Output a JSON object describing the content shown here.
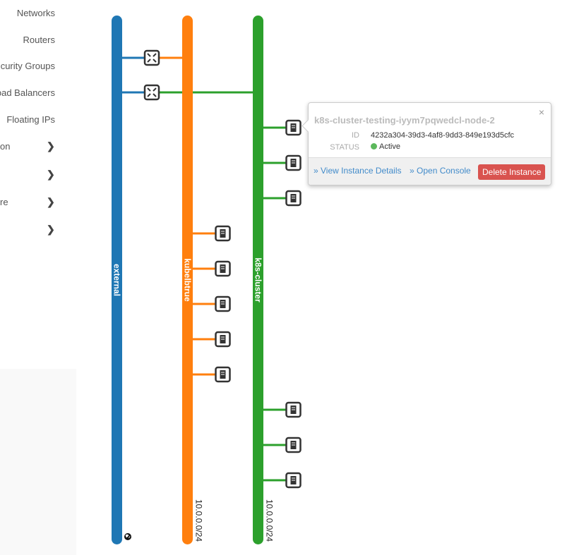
{
  "sidebar": {
    "items": [
      {
        "label": "Networks"
      },
      {
        "label": "Routers"
      },
      {
        "label": "curity Groups"
      },
      {
        "label": "oad Balancers"
      },
      {
        "label": "Floating IPs"
      },
      {
        "label": "on"
      },
      {
        "label": ""
      },
      {
        "label": "re"
      },
      {
        "label": ""
      }
    ]
  },
  "topology": {
    "networks": [
      {
        "name": "external",
        "color": "#1f77b4",
        "cidr": ""
      },
      {
        "name": "kubelbtrue",
        "color": "#ff7f0e",
        "cidr": "10.0.0.0/24"
      },
      {
        "name": "k8s-cluster",
        "color": "#2ca02c",
        "cidr": "10.0.0.0/24"
      }
    ],
    "routers": [
      {
        "connects": [
          "external",
          "kubelbtrue"
        ]
      },
      {
        "connects": [
          "external",
          "k8s-cluster"
        ]
      }
    ],
    "instances": {
      "kubelbtrue": 5,
      "k8s-cluster": 6
    }
  },
  "popup": {
    "title": "k8s-cluster-testing-iyym7pqwedcl-node-2",
    "id_label": "ID",
    "id": "4232a304-39d3-4af8-9dd3-849e193d5cfc",
    "status_label": "STATUS",
    "status": "Active",
    "view_details": "» View Instance Details",
    "open_console": "» Open Console",
    "delete": "Delete Instance",
    "close": "×"
  }
}
